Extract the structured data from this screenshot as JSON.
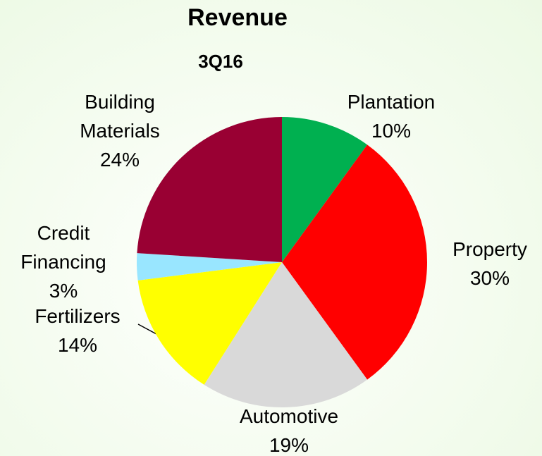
{
  "chart_data": {
    "type": "pie",
    "title": "Revenue",
    "subtitle": "3Q16",
    "categories": [
      "Plantation",
      "Property",
      "Automotive",
      "Fertilizers",
      "Credit Financing",
      "Building Materials"
    ],
    "values": [
      10,
      30,
      19,
      14,
      3,
      24
    ],
    "value_labels": [
      "10%",
      "30%",
      "19%",
      "14%",
      "3%",
      "24%"
    ],
    "colors": [
      "#00b050",
      "#ff0000",
      "#d9d9d9",
      "#ffff00",
      "#99e6ff",
      "#990033"
    ]
  }
}
